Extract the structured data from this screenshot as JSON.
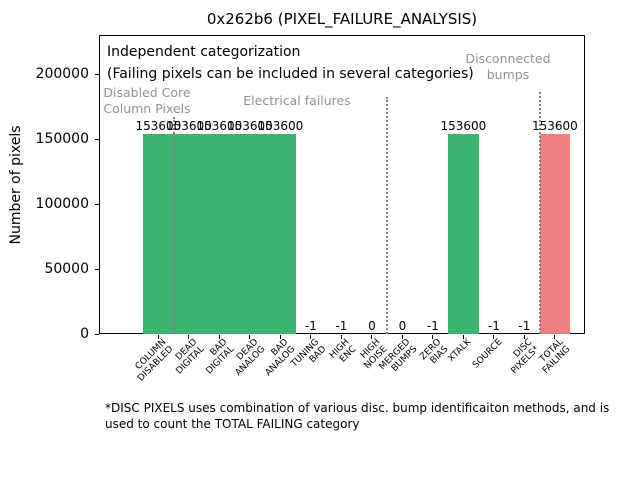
{
  "title": "0x262b6 (PIXEL_FAILURE_ANALYSIS)",
  "annotation": {
    "line1": "Independent categorization",
    "line2": "(Failing pixels can be included in several categories)"
  },
  "sections": [
    {
      "label_lines": [
        "Disabled Core",
        "Column Pixels"
      ]
    },
    {
      "label_lines": [
        "Electrical failures"
      ]
    },
    {
      "label_lines": [
        "Disconnected",
        "bumps"
      ]
    }
  ],
  "footnote_lines": [
    "*DISC PIXELS uses combination of various disc. bump identificaiton methods, and is",
    "used to count the TOTAL FAILING category"
  ],
  "chart_data": {
    "type": "bar",
    "title": "0x262b6 (PIXEL_FAILURE_ANALYSIS)",
    "ylabel": "Number of pixels",
    "ylim": [
      0,
      230000
    ],
    "yticks": [
      0,
      50000,
      100000,
      150000,
      200000
    ],
    "grid": false,
    "categories": [
      "COLUMN DISABLED",
      "DEAD DIGITAL",
      "BAD DIGITAL",
      "DEAD ANALOG",
      "BAD ANALOG",
      "TUNING BAD",
      "HIGH ENC",
      "HIGH NOISE",
      "MERGED BUMPS",
      "ZERO BIAS",
      "XTALK",
      "SOURCE",
      "DISC PIXELS*",
      "TOTAL FAILING"
    ],
    "category_label_lines": [
      [
        "COLUMN",
        "DISABLED"
      ],
      [
        "DEAD",
        "DIGITAL"
      ],
      [
        "BAD",
        "DIGITAL"
      ],
      [
        "DEAD",
        "ANALOG"
      ],
      [
        "BAD",
        "ANALOG"
      ],
      [
        "TUNING",
        "BAD"
      ],
      [
        "HIGH",
        "ENC"
      ],
      [
        "HIGH",
        "NOISE"
      ],
      [
        "MERGED",
        "BUMPS"
      ],
      [
        "ZERO",
        "BIAS"
      ],
      [
        "XTALK"
      ],
      [
        "SOURCE"
      ],
      [
        "DISC",
        "PIXELS*"
      ],
      [
        "TOTAL",
        "FAILING"
      ]
    ],
    "values": [
      153600,
      153600,
      153600,
      153600,
      153600,
      -1,
      -1,
      0,
      0,
      -1,
      153600,
      -1,
      -1,
      153600
    ],
    "bar_colors": [
      "#3CB371",
      "#3CB371",
      "#3CB371",
      "#3CB371",
      "#3CB371",
      null,
      null,
      null,
      null,
      null,
      "#3CB371",
      null,
      null,
      "#F08080"
    ],
    "separators_after_index": [
      0,
      7,
      12
    ],
    "colors": {
      "bar_green": "#3CB371",
      "bar_red": "#F08080",
      "section_text": "#929292",
      "separator": "#808080",
      "axis": "#000000"
    }
  }
}
